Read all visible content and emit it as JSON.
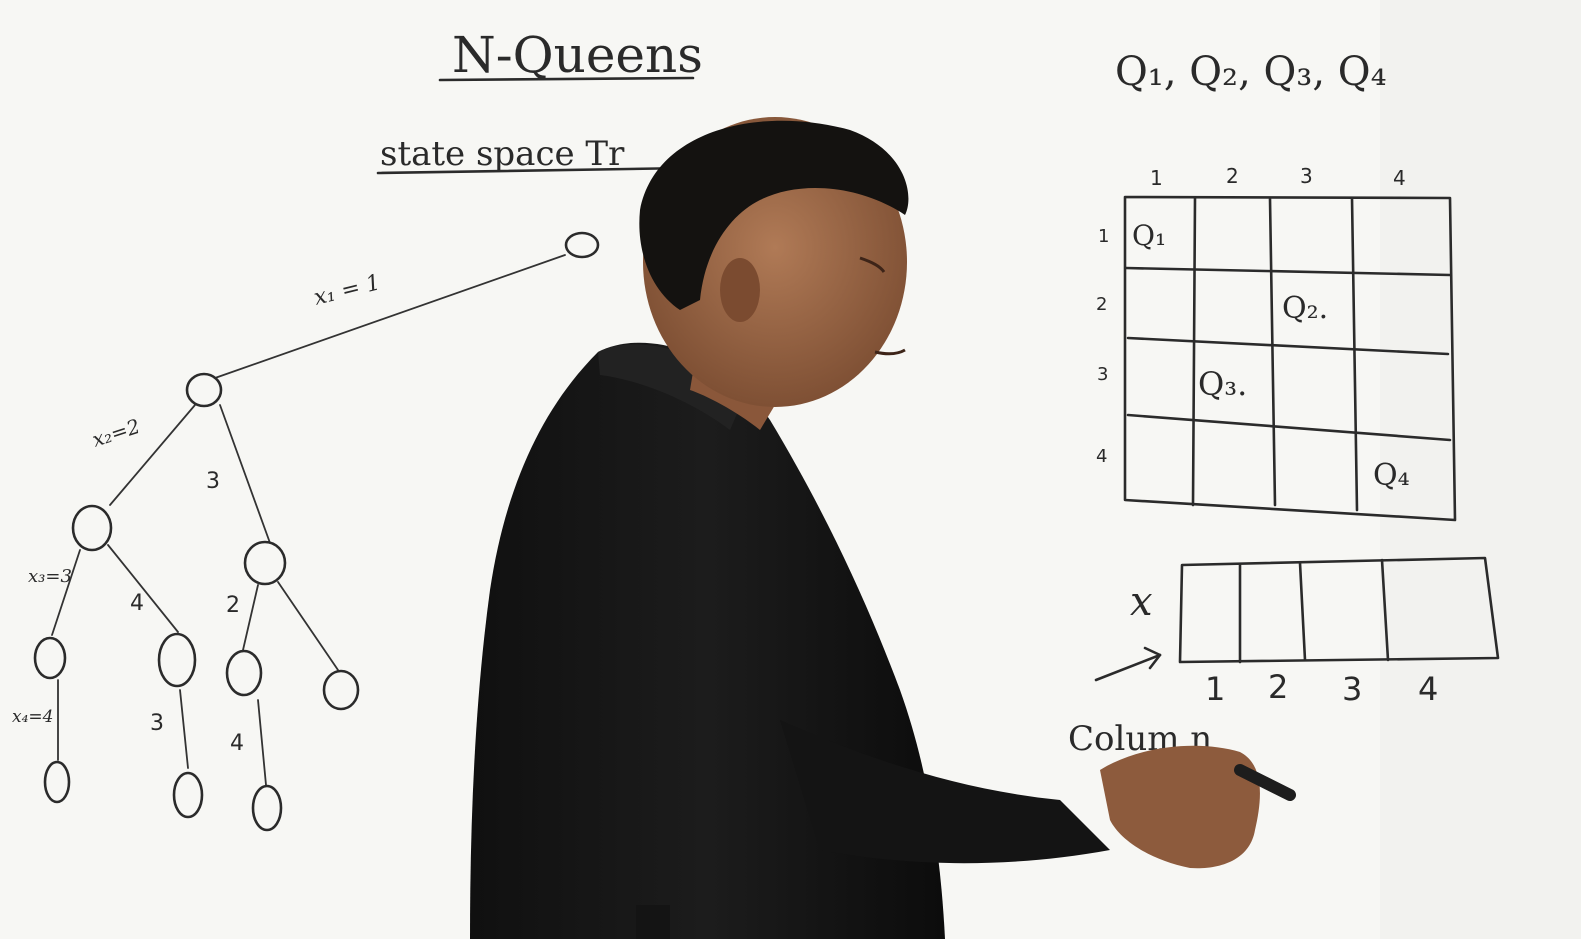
{
  "whiteboard": {
    "title": "N-Queens",
    "subtitle": "state space Tr",
    "queens_list": "Q₁, Q₂, Q₃,  Q₄",
    "tree": {
      "edge_labels": {
        "x1": "x₁ = 1",
        "x2": "x₂=2",
        "x3": "x₃=3",
        "x4": "x₄=4",
        "b3_top": "3",
        "b4_left": "4",
        "b2_right": "2",
        "b3_low": "3",
        "b4_low": "4"
      }
    },
    "board": {
      "col_headers": [
        "1",
        "2",
        "3",
        "4"
      ],
      "row_headers": [
        "1",
        "2",
        "3",
        "4"
      ],
      "queens": [
        {
          "row": 1,
          "col": 1,
          "label": "Q₁"
        },
        {
          "row": 2,
          "col": 3,
          "label": "Q₂."
        },
        {
          "row": 3,
          "col": 2,
          "label": "Q₃."
        },
        {
          "row": 4,
          "col": 4,
          "label": "Q₄"
        }
      ]
    },
    "array": {
      "name": "x",
      "indices": [
        "1",
        "2",
        "3",
        "4"
      ],
      "caption": "Colum n"
    }
  }
}
